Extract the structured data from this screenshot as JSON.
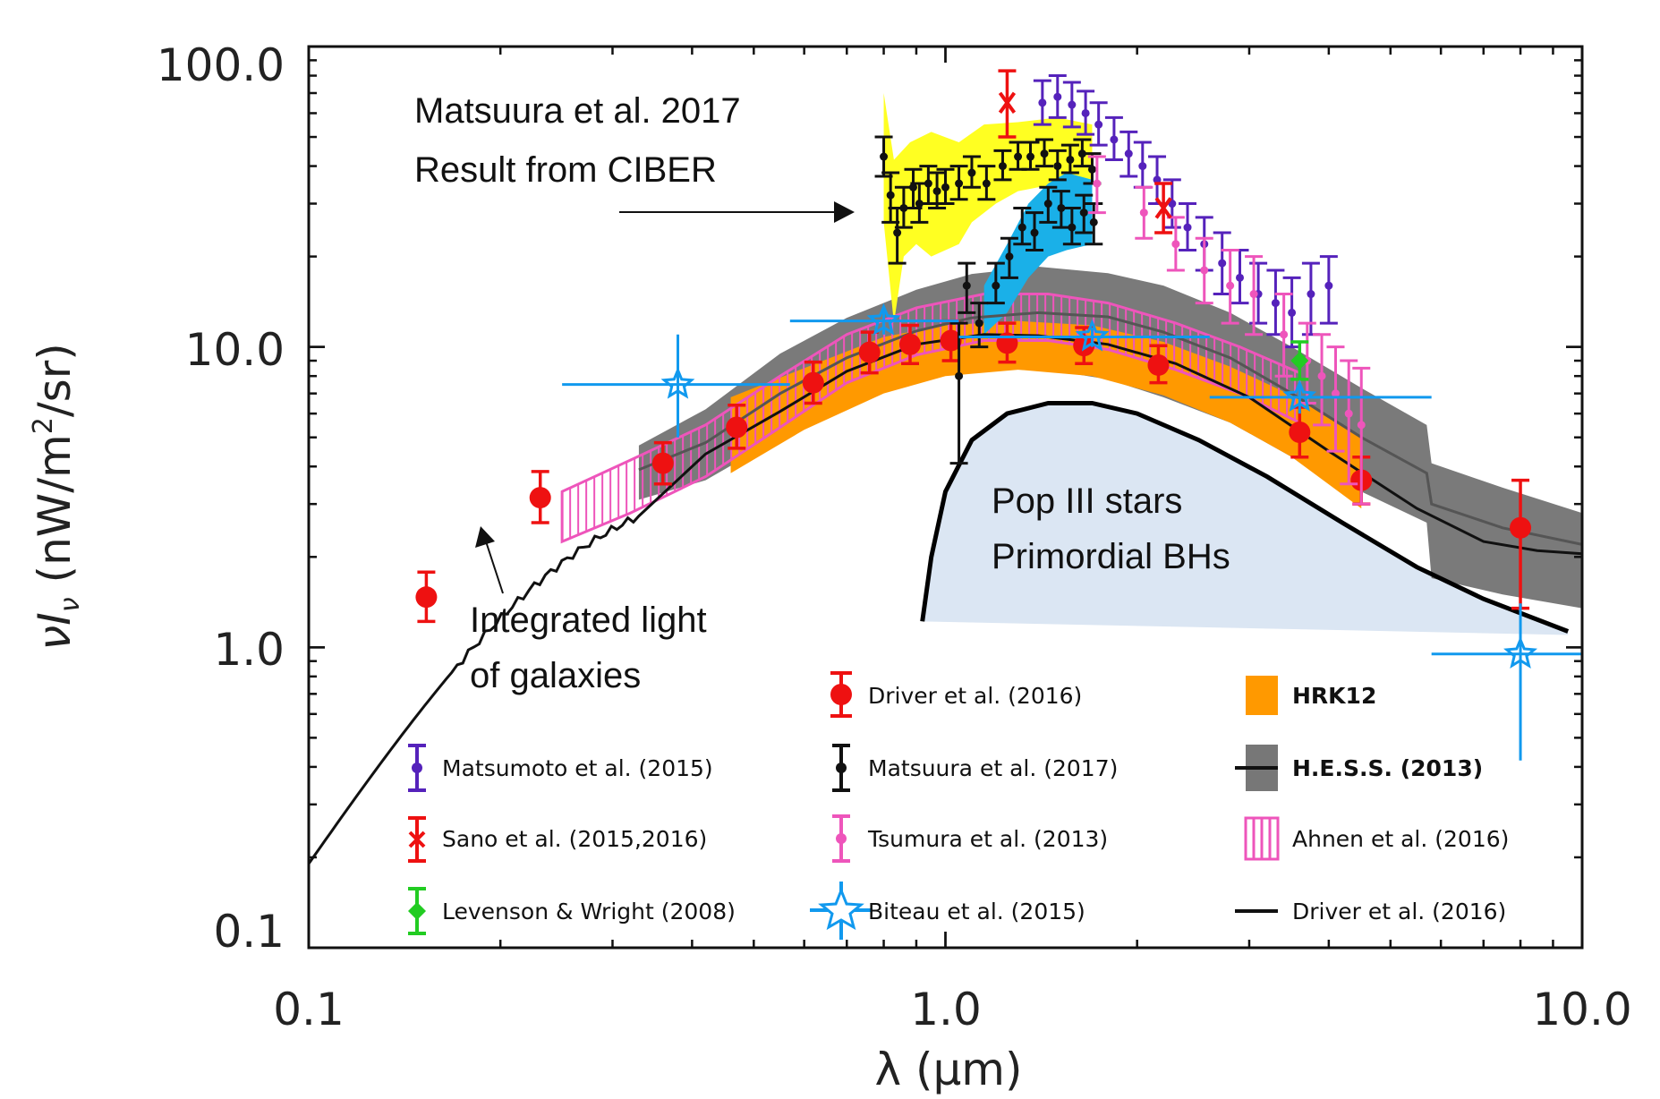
{
  "chart_data": {
    "type": "scatter",
    "title": "",
    "xlabel": "λ (μm)",
    "ylabel_main": "νI",
    "ylabel_sub": "ν",
    "ylabel_units": "(nW/m",
    "ylabel_units_sup": "2",
    "ylabel_units_end": "/sr)",
    "xscale": "log",
    "yscale": "log",
    "xlim": [
      0.1,
      10.0
    ],
    "ylim": [
      0.1,
      100.0
    ],
    "x_ticks": [
      "0.1",
      "1.0",
      "10.0"
    ],
    "y_ticks": [
      "0.1",
      "1.0",
      "10.0",
      "100.0"
    ],
    "annotations": {
      "ciber_line1": "Matsuura et al. 2017",
      "ciber_line2": "Result from CIBER",
      "pop3_line1": "Pop III stars",
      "pop3_line2": "Primordial BHs",
      "igl_line1": "Integrated light",
      "igl_line2": "of galaxies"
    },
    "legend": [
      {
        "label": "Driver et al. (2016)",
        "color": "#ee1111",
        "marker": "big-circle"
      },
      {
        "label": "HRK12",
        "color": "#ff9900",
        "marker": "band",
        "bold": true
      },
      {
        "label": "Matsumoto et al. (2015)",
        "color": "#5522bb",
        "marker": "errbar-dot"
      },
      {
        "label": "Matsuura et al. (2017)",
        "color": "#111111",
        "marker": "errbar-dot"
      },
      {
        "label": "H.E.S.S. (2013)",
        "color": "#777777",
        "marker": "band-line",
        "bold": true
      },
      {
        "label": "Sano et al. (2015,2016)",
        "color": "#ee1111",
        "marker": "errbar-x"
      },
      {
        "label": "Tsumura et al. (2013)",
        "color": "#ee55bb",
        "marker": "errbar-dot"
      },
      {
        "label": "Ahnen et al. (2016)",
        "color": "#ee55bb",
        "marker": "hatch-box"
      },
      {
        "label": "Levenson & Wright (2008)",
        "color": "#22cc22",
        "marker": "errbar-diamond"
      },
      {
        "label": "Biteau et al. (2015)",
        "color": "#1199ee",
        "marker": "star"
      },
      {
        "label": "Driver et al. (2016)",
        "color": "#000000",
        "marker": "line"
      }
    ],
    "series": [
      {
        "name": "Driver et al. (2016) data",
        "color": "#ee1111",
        "points": [
          {
            "x": 0.153,
            "y": 1.47,
            "lo": 1.22,
            "hi": 1.78
          },
          {
            "x": 0.231,
            "y": 3.15,
            "lo": 2.6,
            "hi": 3.85
          },
          {
            "x": 0.36,
            "y": 4.1,
            "lo": 3.5,
            "hi": 4.8
          },
          {
            "x": 0.47,
            "y": 5.4,
            "lo": 4.6,
            "hi": 6.4
          },
          {
            "x": 0.62,
            "y": 7.6,
            "lo": 6.5,
            "hi": 8.9
          },
          {
            "x": 0.76,
            "y": 9.6,
            "lo": 8.2,
            "hi": 11.2
          },
          {
            "x": 0.88,
            "y": 10.2,
            "lo": 8.8,
            "hi": 11.8
          },
          {
            "x": 1.02,
            "y": 10.5,
            "lo": 9.0,
            "hi": 12.2
          },
          {
            "x": 1.25,
            "y": 10.3,
            "lo": 8.9,
            "hi": 12.0
          },
          {
            "x": 1.65,
            "y": 10.1,
            "lo": 8.8,
            "hi": 11.6
          },
          {
            "x": 2.16,
            "y": 8.7,
            "lo": 7.6,
            "hi": 10.1
          },
          {
            "x": 3.6,
            "y": 5.2,
            "lo": 4.3,
            "hi": 6.3
          },
          {
            "x": 4.5,
            "y": 3.6,
            "lo": 3.0,
            "hi": 4.3
          },
          {
            "x": 8.0,
            "y": 2.5,
            "lo": 1.35,
            "hi": 3.6
          }
        ]
      },
      {
        "name": "Matsuura et al. (2017)",
        "color": "#111111",
        "points": [
          {
            "x": 0.8,
            "y": 43,
            "lo": 37,
            "hi": 50
          },
          {
            "x": 0.82,
            "y": 32,
            "lo": 26,
            "hi": 38
          },
          {
            "x": 0.84,
            "y": 24,
            "lo": 19,
            "hi": 29
          },
          {
            "x": 0.86,
            "y": 29,
            "lo": 25,
            "hi": 34
          },
          {
            "x": 0.89,
            "y": 34,
            "lo": 29,
            "hi": 39
          },
          {
            "x": 0.91,
            "y": 30,
            "lo": 26,
            "hi": 35
          },
          {
            "x": 0.94,
            "y": 35,
            "lo": 30,
            "hi": 40
          },
          {
            "x": 0.97,
            "y": 33,
            "lo": 29,
            "hi": 38
          },
          {
            "x": 1.0,
            "y": 34,
            "lo": 30,
            "hi": 39
          },
          {
            "x": 1.05,
            "y": 35,
            "lo": 31,
            "hi": 40
          },
          {
            "x": 1.1,
            "y": 38,
            "lo": 34,
            "hi": 43
          },
          {
            "x": 1.16,
            "y": 35,
            "lo": 31,
            "hi": 40
          },
          {
            "x": 1.23,
            "y": 40,
            "lo": 36,
            "hi": 45
          },
          {
            "x": 1.3,
            "y": 43,
            "lo": 39,
            "hi": 48
          },
          {
            "x": 1.36,
            "y": 43,
            "lo": 39,
            "hi": 48
          },
          {
            "x": 1.43,
            "y": 44,
            "lo": 40,
            "hi": 49
          },
          {
            "x": 1.5,
            "y": 40,
            "lo": 36,
            "hi": 45
          },
          {
            "x": 1.57,
            "y": 42,
            "lo": 38,
            "hi": 47
          },
          {
            "x": 1.64,
            "y": 44,
            "lo": 40,
            "hi": 49
          },
          {
            "x": 1.7,
            "y": 39,
            "lo": 35,
            "hi": 44
          },
          {
            "x": 1.08,
            "y": 16,
            "lo": 13,
            "hi": 19
          },
          {
            "x": 1.13,
            "y": 12,
            "lo": 10,
            "hi": 14
          },
          {
            "x": 1.2,
            "y": 16,
            "lo": 14,
            "hi": 19
          },
          {
            "x": 1.26,
            "y": 20,
            "lo": 17,
            "hi": 23
          },
          {
            "x": 1.32,
            "y": 25,
            "lo": 22,
            "hi": 29
          },
          {
            "x": 1.38,
            "y": 24,
            "lo": 21,
            "hi": 28
          },
          {
            "x": 1.45,
            "y": 30,
            "lo": 26,
            "hi": 34
          },
          {
            "x": 1.52,
            "y": 29,
            "lo": 25,
            "hi": 33
          },
          {
            "x": 1.58,
            "y": 25,
            "lo": 22,
            "hi": 29
          },
          {
            "x": 1.65,
            "y": 28,
            "lo": 24,
            "hi": 32
          },
          {
            "x": 1.71,
            "y": 26,
            "lo": 22,
            "hi": 30
          },
          {
            "x": 1.05,
            "y": 8.0,
            "lo": 4.1,
            "hi": 12.0
          }
        ]
      },
      {
        "name": "Matsumoto et al. (2015)",
        "color": "#5522bb",
        "points": [
          {
            "x": 1.42,
            "y": 65,
            "lo": 55,
            "hi": 77
          },
          {
            "x": 1.5,
            "y": 68,
            "lo": 58,
            "hi": 80
          },
          {
            "x": 1.58,
            "y": 64,
            "lo": 54,
            "hi": 76
          },
          {
            "x": 1.66,
            "y": 60,
            "lo": 51,
            "hi": 71
          },
          {
            "x": 1.74,
            "y": 55,
            "lo": 47,
            "hi": 65
          },
          {
            "x": 1.84,
            "y": 49,
            "lo": 42,
            "hi": 58
          },
          {
            "x": 1.94,
            "y": 44,
            "lo": 37,
            "hi": 52
          },
          {
            "x": 2.04,
            "y": 40,
            "lo": 34,
            "hi": 48
          },
          {
            "x": 2.15,
            "y": 36,
            "lo": 30,
            "hi": 43
          },
          {
            "x": 2.27,
            "y": 30,
            "lo": 25,
            "hi": 36
          },
          {
            "x": 2.4,
            "y": 25,
            "lo": 21,
            "hi": 30
          },
          {
            "x": 2.55,
            "y": 22,
            "lo": 18,
            "hi": 27
          },
          {
            "x": 2.72,
            "y": 19,
            "lo": 15,
            "hi": 24
          },
          {
            "x": 2.9,
            "y": 17,
            "lo": 14,
            "hi": 21
          },
          {
            "x": 3.1,
            "y": 15,
            "lo": 12,
            "hi": 19
          },
          {
            "x": 3.3,
            "y": 14,
            "lo": 11,
            "hi": 18
          },
          {
            "x": 3.5,
            "y": 13,
            "lo": 10,
            "hi": 17
          },
          {
            "x": 3.75,
            "y": 15,
            "lo": 11,
            "hi": 19
          },
          {
            "x": 4.0,
            "y": 16,
            "lo": 12,
            "hi": 20
          }
        ]
      },
      {
        "name": "Tsumura et al. (2013)",
        "color": "#ee55bb",
        "points": [
          {
            "x": 1.73,
            "y": 35,
            "lo": 28,
            "hi": 43
          },
          {
            "x": 2.05,
            "y": 28,
            "lo": 23,
            "hi": 34
          },
          {
            "x": 2.3,
            "y": 22,
            "lo": 18,
            "hi": 27
          },
          {
            "x": 2.55,
            "y": 18,
            "lo": 14,
            "hi": 23
          },
          {
            "x": 2.8,
            "y": 16,
            "lo": 12,
            "hi": 21
          },
          {
            "x": 3.05,
            "y": 15,
            "lo": 11,
            "hi": 20
          },
          {
            "x": 3.4,
            "y": 11,
            "lo": 8,
            "hi": 15
          },
          {
            "x": 3.7,
            "y": 9,
            "lo": 6.5,
            "hi": 12
          },
          {
            "x": 3.9,
            "y": 8,
            "lo": 5.5,
            "hi": 11
          },
          {
            "x": 4.1,
            "y": 7,
            "lo": 4.5,
            "hi": 10
          },
          {
            "x": 4.3,
            "y": 6,
            "lo": 3.5,
            "hi": 9
          },
          {
            "x": 4.5,
            "y": 5.5,
            "lo": 3.0,
            "hi": 8.5
          }
        ]
      },
      {
        "name": "Sano et al. (2015,2016)",
        "color": "#ee1111",
        "points": [
          {
            "x": 1.25,
            "y": 65,
            "lo": 50,
            "hi": 83
          },
          {
            "x": 2.2,
            "y": 29,
            "lo": 24,
            "hi": 35
          }
        ]
      },
      {
        "name": "Levenson & Wright (2008)",
        "color": "#22cc22",
        "points": [
          {
            "x": 3.6,
            "y": 9.0,
            "lo": 7.8,
            "hi": 10.4
          }
        ]
      },
      {
        "name": "Biteau et al. (2015)",
        "color": "#1199ee",
        "points": [
          {
            "x": 0.38,
            "y": 7.5,
            "xlo": 0.25,
            "xhi": 0.57,
            "lo": 5.0,
            "hi": 11.0
          },
          {
            "x": 0.8,
            "y": 12.2,
            "xlo": 0.57,
            "xhi": 1.05,
            "lo": 11.0,
            "hi": 13.5
          },
          {
            "x": 1.7,
            "y": 10.8,
            "xlo": 1.05,
            "xhi": 2.6,
            "lo": 10.0,
            "hi": 11.6
          },
          {
            "x": 3.6,
            "y": 6.8,
            "xlo": 2.6,
            "xhi": 5.8,
            "lo": 6.0,
            "hi": 7.6
          },
          {
            "x": 8.0,
            "y": 0.95,
            "xlo": 5.8,
            "xhi": 10.0,
            "lo": 0.42,
            "hi": 1.4
          }
        ]
      }
    ]
  }
}
